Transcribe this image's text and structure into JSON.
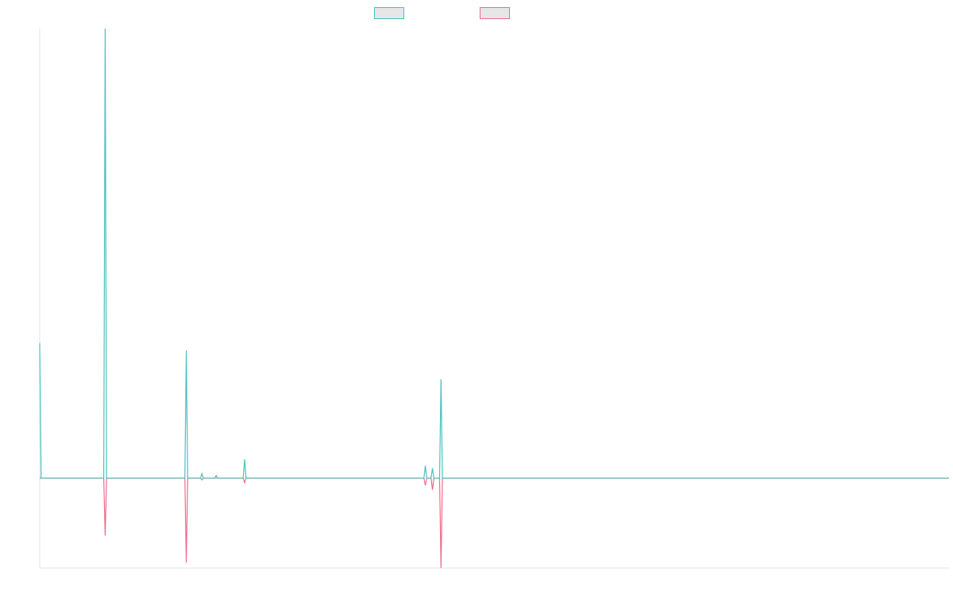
{
  "chart_data": {
    "type": "line",
    "x_count": 640,
    "ylim": [
      -100,
      500
    ],
    "grid": false,
    "legend_position": "top-center",
    "series": [
      {
        "name": "",
        "color": "#4bc0c0",
        "points": [
          [
            0,
            150
          ],
          [
            1,
            0
          ],
          [
            45,
            0
          ],
          [
            46,
            500
          ],
          [
            47,
            0
          ],
          [
            102,
            0
          ],
          [
            103,
            142
          ],
          [
            104,
            0
          ],
          [
            113,
            0
          ],
          [
            114,
            5
          ],
          [
            115,
            0
          ],
          [
            123,
            0
          ],
          [
            124,
            3
          ],
          [
            125,
            0
          ],
          [
            143,
            0
          ],
          [
            144,
            21
          ],
          [
            145,
            0
          ],
          [
            270,
            0
          ],
          [
            271,
            14
          ],
          [
            272,
            0
          ],
          [
            275,
            0
          ],
          [
            276,
            11
          ],
          [
            277,
            0
          ],
          [
            281,
            0
          ],
          [
            282,
            110
          ],
          [
            283,
            0
          ],
          [
            639,
            0
          ]
        ]
      },
      {
        "name": "",
        "color": "#ef6a8c",
        "points": [
          [
            0,
            0
          ],
          [
            45,
            0
          ],
          [
            46,
            -64
          ],
          [
            47,
            0
          ],
          [
            102,
            0
          ],
          [
            103,
            -94
          ],
          [
            104,
            0
          ],
          [
            113,
            0
          ],
          [
            114,
            -2
          ],
          [
            115,
            0
          ],
          [
            143,
            0
          ],
          [
            144,
            -5
          ],
          [
            145,
            0
          ],
          [
            270,
            0
          ],
          [
            271,
            -8
          ],
          [
            272,
            0
          ],
          [
            275,
            0
          ],
          [
            276,
            -13
          ],
          [
            277,
            0
          ],
          [
            281,
            0
          ],
          [
            282,
            -100
          ],
          [
            283,
            0
          ],
          [
            639,
            0
          ]
        ]
      }
    ]
  }
}
